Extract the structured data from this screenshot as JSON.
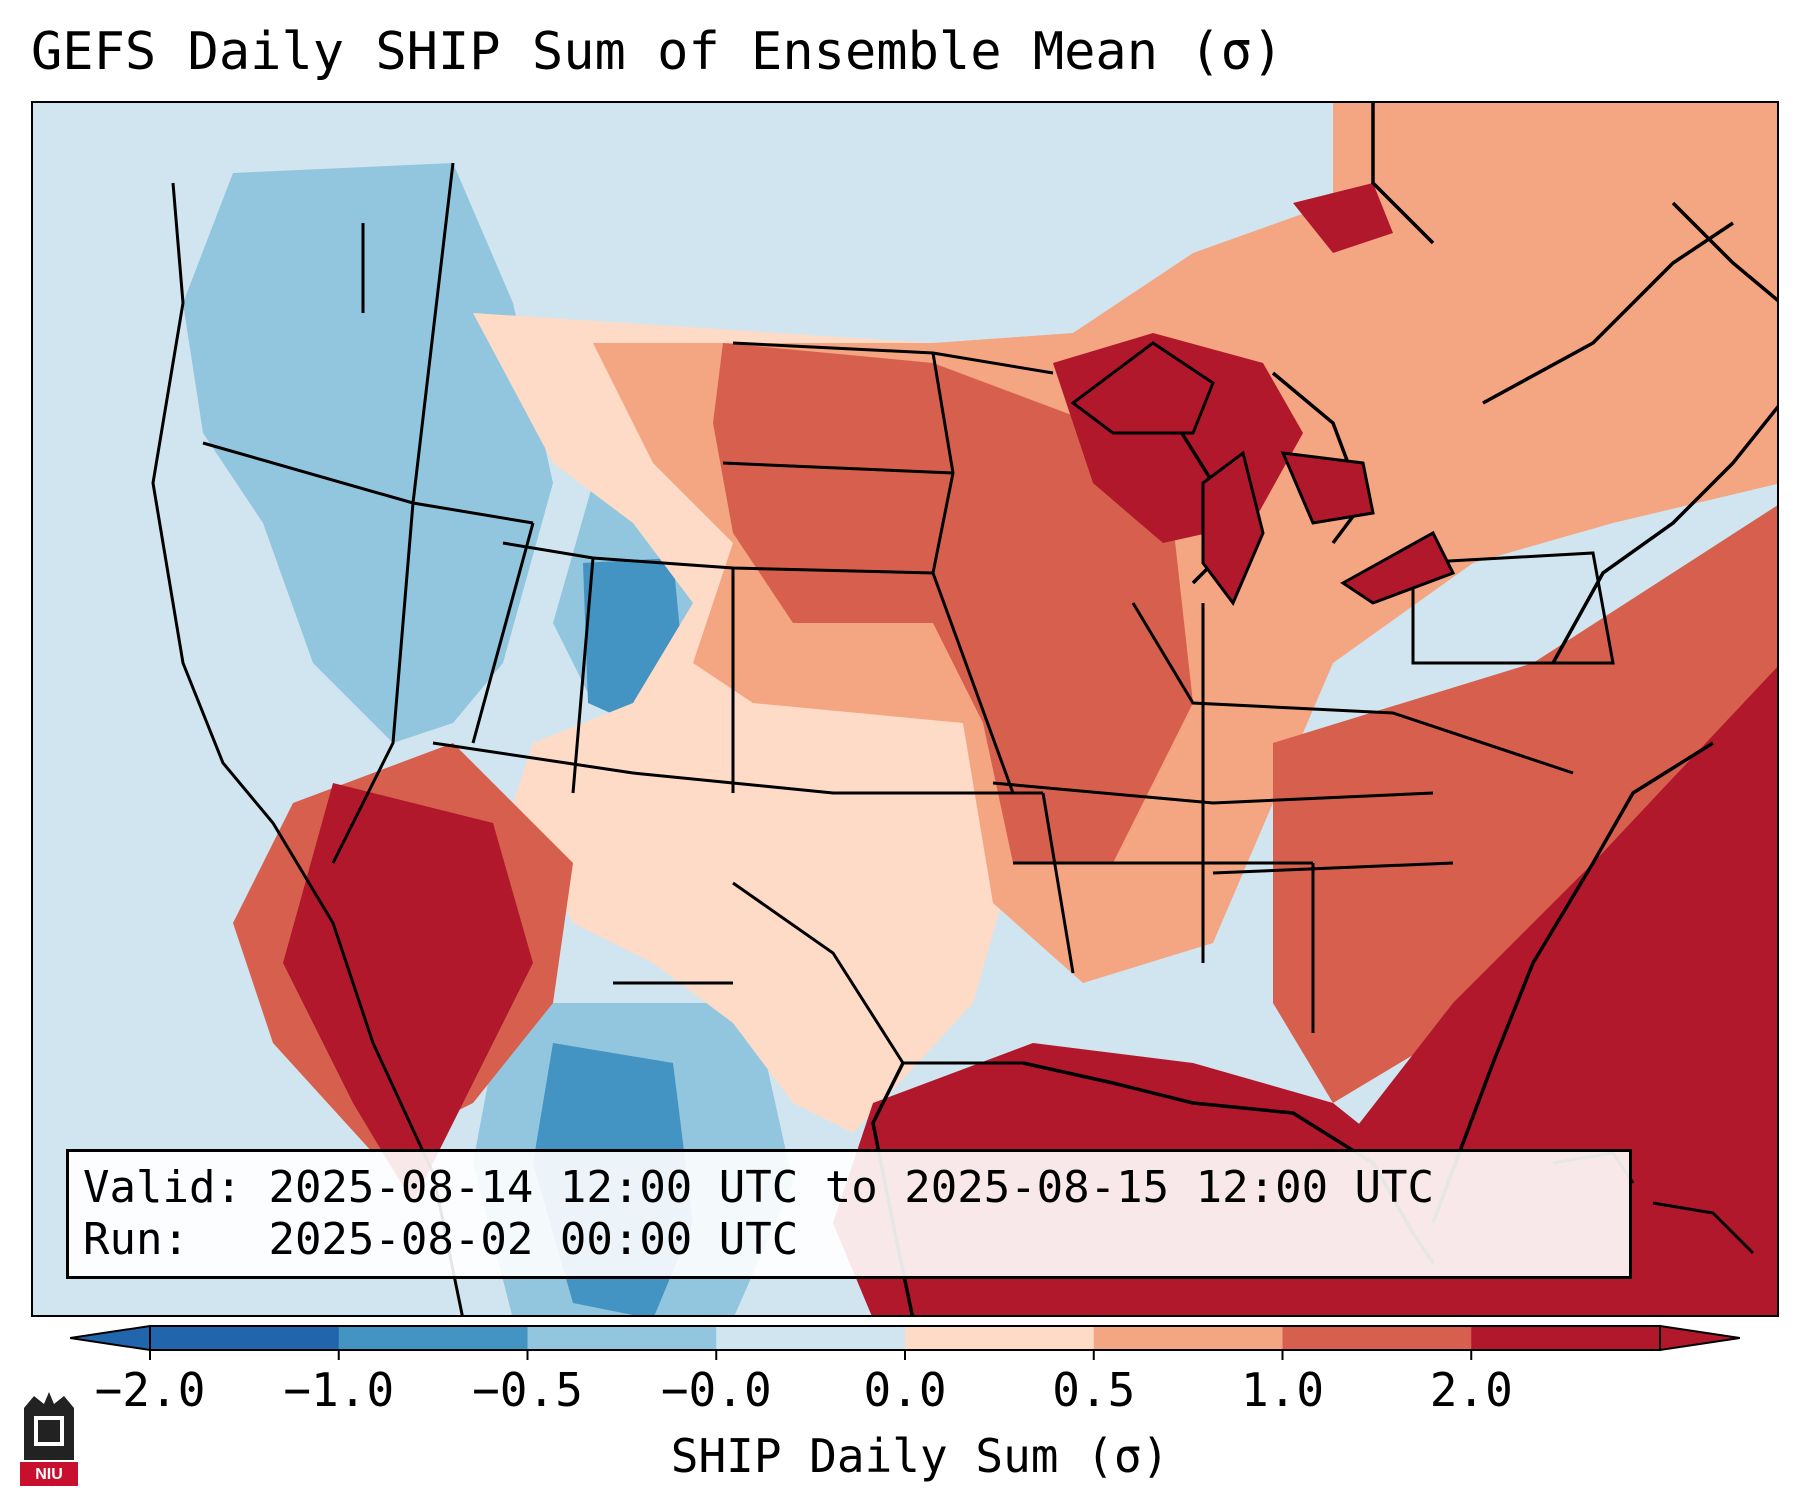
{
  "title": "GEFS Daily SHIP Sum of Ensemble Mean (σ)",
  "info": {
    "valid_label": "Valid:",
    "valid_value": "2025-08-14 12:00 UTC to 2025-08-15 12:00 UTC",
    "run_label": "Run:",
    "run_value": "2025-08-02 00:00 UTC"
  },
  "colorbar": {
    "label": "SHIP Daily Sum (σ)",
    "ticks": [
      "−2.0",
      "−1.0",
      "−0.5",
      "−0.0",
      "0.0",
      "0.5",
      "1.0",
      "2.0"
    ],
    "colors": [
      "#2166ac",
      "#4393c3",
      "#92c5de",
      "#d1e5f0",
      "#fddbc7",
      "#f4a582",
      "#d6604d",
      "#b2182b"
    ]
  },
  "logo": {
    "text": "NIU"
  },
  "map": {
    "projection": "Lambert Conformal",
    "region": "Contiguous United States",
    "background_color": "#d1e5f0",
    "coastline_color": "#000000"
  }
}
